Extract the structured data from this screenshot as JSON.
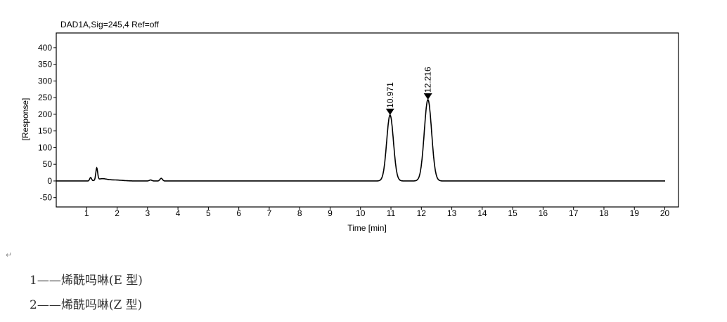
{
  "chart_data": {
    "type": "line",
    "title": "DAD1A,Sig=245,4  Ref=off",
    "xlabel": "Time [min]",
    "ylabel": "[Response]",
    "xlim": [
      0,
      20.45
    ],
    "ylim": [
      -78,
      444
    ],
    "xticks": [
      1,
      2,
      3,
      4,
      5,
      6,
      7,
      8,
      9,
      10,
      11,
      12,
      13,
      14,
      15,
      16,
      17,
      18,
      19,
      20
    ],
    "yticks": [
      -50,
      0,
      50,
      100,
      150,
      200,
      250,
      300,
      350,
      400
    ],
    "grid": false,
    "series": [
      {
        "peaks": [
          {
            "rt": 1.13,
            "height": 10,
            "sigma": 0.03
          },
          {
            "rt": 1.33,
            "height": 36,
            "sigma": 0.03
          },
          {
            "rt": 1.5,
            "height": 6,
            "sigma": 0.15
          },
          {
            "rt": 1.9,
            "height": 3,
            "sigma": 0.25
          },
          {
            "rt": 3.1,
            "height": 3,
            "sigma": 0.04
          },
          {
            "rt": 3.45,
            "height": 8,
            "sigma": 0.04
          },
          {
            "rt": 10.971,
            "height": 198,
            "sigma": 0.11
          },
          {
            "rt": 12.216,
            "height": 244,
            "sigma": 0.12
          }
        ]
      }
    ],
    "annotations": [
      {
        "x": 10.971,
        "y": 198,
        "text": "10.971"
      },
      {
        "x": 12.216,
        "y": 244,
        "text": "12.216"
      }
    ],
    "color": "#000000"
  },
  "legend": {
    "return_mark": "↵",
    "items": [
      "1——烯酰吗啉(E 型)",
      "2——烯酰吗啉(Z 型)"
    ]
  }
}
